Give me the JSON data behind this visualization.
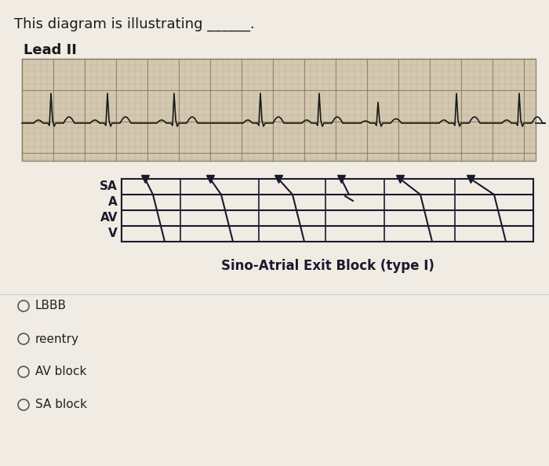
{
  "title_text": "This diagram is illustrating ______.",
  "lead_label": "Lead II",
  "bg_color": "#f0ece4",
  "ecg_bg_color": "#d4c9b0",
  "grid_color": "#a09070",
  "ecg_line_color": "#1a1a1a",
  "diagram_line_color": "#1a1a2e",
  "sa_label": "SA",
  "a_label": "A",
  "av_label": "AV",
  "v_label": "V",
  "caption": "Sino-Atrial Exit Block (type I)",
  "options": [
    "LBBB",
    "reentry",
    "AV block",
    "SA block"
  ],
  "title_fontsize": 13,
  "lead_fontsize": 13,
  "caption_fontsize": 12,
  "option_fontsize": 11,
  "diagram_label_fontsize": 11
}
